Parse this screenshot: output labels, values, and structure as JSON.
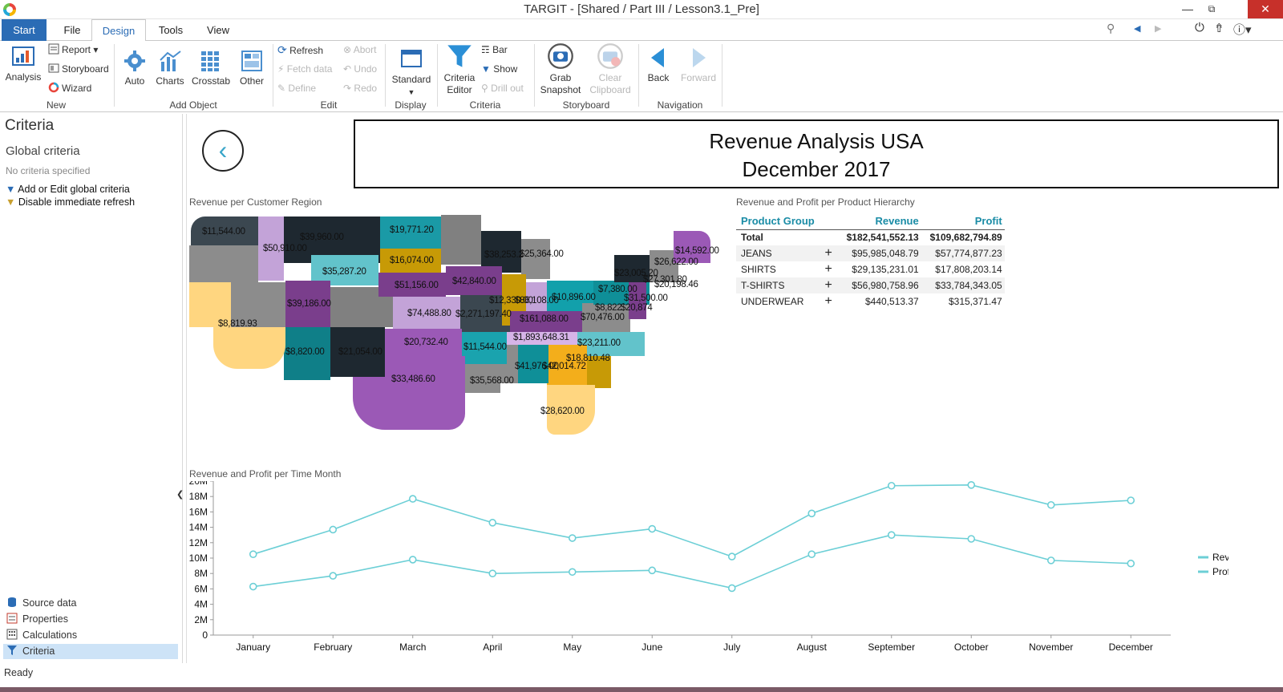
{
  "window": {
    "title": "TARGIT - [Shared / Part III / Lesson3.1_Pre]"
  },
  "menu": {
    "tabs": [
      "Start",
      "File",
      "Design",
      "Tools",
      "View"
    ],
    "active": "Design"
  },
  "ribbon": {
    "new": {
      "label": "New",
      "analysis": "Analysis",
      "report": "Report",
      "storyboard": "Storyboard",
      "wizard": "Wizard"
    },
    "add_object": {
      "label": "Add Object",
      "auto": "Auto",
      "charts": "Charts",
      "crosstab": "Crosstab",
      "other": "Other"
    },
    "edit": {
      "label": "Edit",
      "refresh": "Refresh",
      "fetch_data": "Fetch data",
      "define": "Define",
      "abort": "Abort",
      "undo": "Undo",
      "redo": "Redo"
    },
    "display": {
      "label": "Display",
      "standard": "Standard"
    },
    "criteria": {
      "label": "Criteria",
      "criteria_editor_1": "Criteria",
      "criteria_editor_2": "Editor",
      "bar": "Bar",
      "show": "Show",
      "drill_out": "Drill out"
    },
    "storyboard": {
      "label": "Storyboard",
      "grab_1": "Grab",
      "grab_2": "Snapshot",
      "clear_1": "Clear",
      "clear_2": "Clipboard"
    },
    "navigation": {
      "label": "Navigation",
      "back": "Back",
      "forward": "Forward"
    }
  },
  "left_panel": {
    "title": "Criteria",
    "global_criteria": "Global criteria",
    "no_criteria": "No criteria specified",
    "add_prefix": "Add",
    "add_or": " or ",
    "add_edit": "Edit",
    "add_suffix": " global criteria",
    "disable_refresh": "Disable immediate refresh",
    "nav": {
      "source_data": "Source data",
      "properties": "Properties",
      "calculations": "Calculations",
      "criteria": "Criteria"
    }
  },
  "status": {
    "text": "Ready"
  },
  "report": {
    "title": "Revenue Analysis USA",
    "subtitle": "December  2017",
    "map_title": "Revenue per Customer Region",
    "table_title": "Revenue and Profit per Product Hierarchy",
    "chart_title": "Revenue and Profit per Time Month"
  },
  "map_labels": [
    "$11,544.00",
    "$39,960.00",
    "$19,771.20",
    "$50,910.00",
    "$35,287.20",
    "$16,074.00",
    "$38,253.2",
    "$25,364.00",
    "$14,592.00",
    "$26,622.00",
    "$23,005.20",
    "$27,301.80",
    "$20,198.46",
    "$51,156.00",
    "$42,840.00",
    "$7,380.00",
    "$39,186.00",
    "$10,896.00",
    "$31,500.00",
    "$12,330.00",
    "$86,108.00",
    "$8,822",
    "$20,874",
    "$74,488.80",
    "$2,271,197.40",
    "$161,088.00",
    "$70,476.00",
    "$8,819.93",
    "$20,732.40",
    "$1,893,648.31",
    "$23,211.00",
    "$11,544.00",
    "$8,820.00",
    "$21,054.00",
    "$18,810.48",
    "$41,976.00",
    "$42,014.72",
    "$33,486.60",
    "$35,568.00",
    "$28,620.00"
  ],
  "product_table": {
    "headers": [
      "Product Group",
      "Revenue",
      "Profit"
    ],
    "total": {
      "label": "Total",
      "revenue": "$182,541,552.13",
      "profit": "$109,682,794.89"
    },
    "rows": [
      {
        "label": "JEANS",
        "revenue": "$95,985,048.79",
        "profit": "$57,774,877.23"
      },
      {
        "label": "SHIRTS",
        "revenue": "$29,135,231.01",
        "profit": "$17,808,203.14"
      },
      {
        "label": "T-SHIRTS",
        "revenue": "$56,980,758.96",
        "profit": "$33,784,343.05"
      },
      {
        "label": "UNDERWEAR",
        "revenue": "$440,513.37",
        "profit": "$315,371.47"
      }
    ]
  },
  "chart_data": {
    "type": "line",
    "title": "Revenue and Profit per Time Month",
    "categories": [
      "January",
      "February",
      "March",
      "April",
      "May",
      "June",
      "July",
      "August",
      "September",
      "October",
      "November",
      "December"
    ],
    "series": [
      {
        "name": "Revenue",
        "values": [
          10.5,
          13.7,
          17.7,
          14.6,
          12.6,
          13.8,
          10.2,
          15.8,
          19.4,
          19.5,
          16.9,
          17.5
        ]
      },
      {
        "name": "Profit",
        "values": [
          6.3,
          7.7,
          9.8,
          8.0,
          8.2,
          8.4,
          6.1,
          10.5,
          13.0,
          12.5,
          9.7,
          9.3
        ]
      }
    ],
    "y_unit": "M",
    "ylim": [
      0,
      20
    ],
    "y_ticks": [
      "0",
      "2M",
      "4M",
      "6M",
      "8M",
      "10M",
      "12M",
      "14M",
      "16M",
      "18M",
      "20M"
    ],
    "legend": "right",
    "line_color": "#6ccfd6"
  }
}
